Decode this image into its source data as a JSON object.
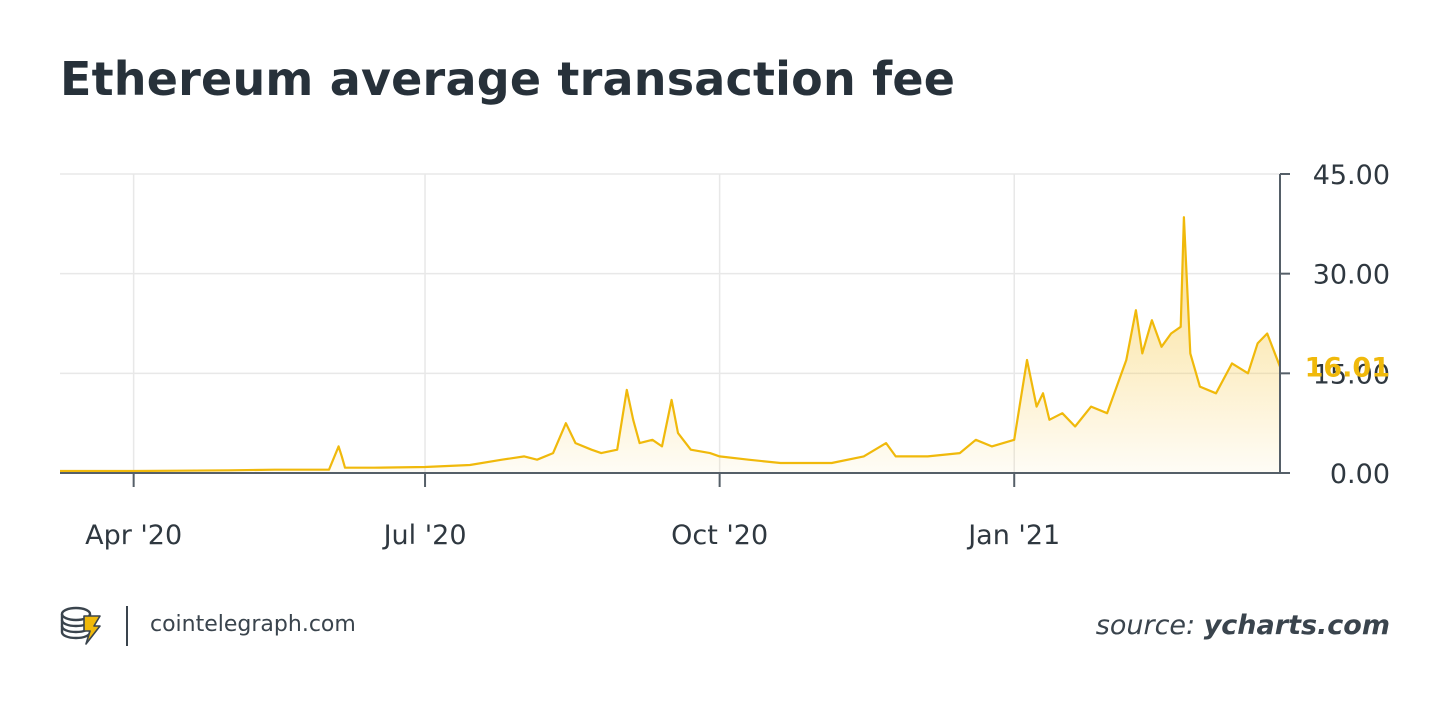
{
  "title": "Ethereum average transaction fee",
  "footer": {
    "site": "cointelegraph.com",
    "source_prefix": "source: ",
    "source_name": "ycharts.com"
  },
  "colors": {
    "line": "#f0b90b",
    "fill_top": "#f7c948",
    "text": "#2f3840",
    "grid": "#e8e8e8",
    "axis": "#555f68"
  },
  "chart_data": {
    "type": "area",
    "title": "Ethereum average transaction fee",
    "xlabel": "",
    "ylabel": "",
    "grid": true,
    "legend": "none",
    "x_ticks": [
      {
        "label": "Apr '20",
        "date": "2020-04-01"
      },
      {
        "label": "Jul '20",
        "date": "2020-07-01"
      },
      {
        "label": "Oct '20",
        "date": "2020-10-01"
      },
      {
        "label": "Jan '21",
        "date": "2021-01-01"
      }
    ],
    "y_ticks": [
      "0.00",
      "15.00",
      "30.00",
      "45.00"
    ],
    "ylim": [
      0,
      45
    ],
    "xlim": [
      "2020-03-09",
      "2021-03-25"
    ],
    "last_value_label": "16.01",
    "series": [
      {
        "points": [
          [
            "2020-03-09",
            0.3
          ],
          [
            "2020-03-20",
            0.3
          ],
          [
            "2020-04-01",
            0.3
          ],
          [
            "2020-04-15",
            0.35
          ],
          [
            "2020-05-01",
            0.4
          ],
          [
            "2020-05-15",
            0.5
          ],
          [
            "2020-05-25",
            0.5
          ],
          [
            "2020-06-01",
            0.5
          ],
          [
            "2020-06-04",
            4.0
          ],
          [
            "2020-06-05",
            2.5
          ],
          [
            "2020-06-06",
            0.8
          ],
          [
            "2020-06-15",
            0.8
          ],
          [
            "2020-07-01",
            0.9
          ],
          [
            "2020-07-15",
            1.2
          ],
          [
            "2020-07-25",
            2.0
          ],
          [
            "2020-08-01",
            2.5
          ],
          [
            "2020-08-05",
            2.0
          ],
          [
            "2020-08-10",
            3.0
          ],
          [
            "2020-08-14",
            7.5
          ],
          [
            "2020-08-17",
            4.5
          ],
          [
            "2020-08-22",
            3.5
          ],
          [
            "2020-08-25",
            3.0
          ],
          [
            "2020-08-30",
            3.5
          ],
          [
            "2020-09-02",
            12.5
          ],
          [
            "2020-09-04",
            8.0
          ],
          [
            "2020-09-06",
            4.5
          ],
          [
            "2020-09-10",
            5.0
          ],
          [
            "2020-09-13",
            4.0
          ],
          [
            "2020-09-16",
            11.0
          ],
          [
            "2020-09-18",
            6.0
          ],
          [
            "2020-09-22",
            3.5
          ],
          [
            "2020-09-28",
            3.0
          ],
          [
            "2020-10-01",
            2.5
          ],
          [
            "2020-10-10",
            2.0
          ],
          [
            "2020-10-20",
            1.5
          ],
          [
            "2020-10-30",
            1.5
          ],
          [
            "2020-11-05",
            1.5
          ],
          [
            "2020-11-15",
            2.5
          ],
          [
            "2020-11-22",
            4.5
          ],
          [
            "2020-11-25",
            2.5
          ],
          [
            "2020-12-05",
            2.5
          ],
          [
            "2020-12-15",
            3.0
          ],
          [
            "2020-12-20",
            5.0
          ],
          [
            "2020-12-25",
            4.0
          ],
          [
            "2021-01-01",
            5.0
          ],
          [
            "2021-01-05",
            17.0
          ],
          [
            "2021-01-08",
            10.0
          ],
          [
            "2021-01-10",
            12.0
          ],
          [
            "2021-01-12",
            8.0
          ],
          [
            "2021-01-16",
            9.0
          ],
          [
            "2021-01-20",
            7.0
          ],
          [
            "2021-01-25",
            10.0
          ],
          [
            "2021-01-30",
            9.0
          ],
          [
            "2021-02-05",
            17.0
          ],
          [
            "2021-02-08",
            24.5
          ],
          [
            "2021-02-10",
            18.0
          ],
          [
            "2021-02-13",
            23.0
          ],
          [
            "2021-02-16",
            19.0
          ],
          [
            "2021-02-19",
            21.0
          ],
          [
            "2021-02-22",
            22.0
          ],
          [
            "2021-02-23",
            38.5
          ],
          [
            "2021-02-25",
            18.0
          ],
          [
            "2021-02-28",
            13.0
          ],
          [
            "2021-03-05",
            12.0
          ],
          [
            "2021-03-10",
            16.5
          ],
          [
            "2021-03-15",
            15.0
          ],
          [
            "2021-03-18",
            19.5
          ],
          [
            "2021-03-21",
            21.0
          ],
          [
            "2021-03-25",
            16.0
          ]
        ]
      }
    ]
  }
}
